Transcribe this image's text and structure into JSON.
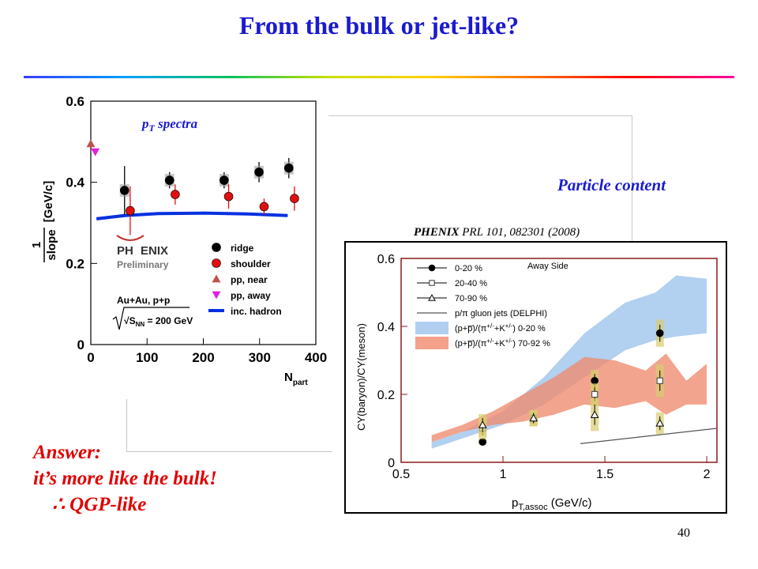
{
  "title": "From the bulk or jet-like?",
  "particle_content_label": "Particle content",
  "reference": {
    "experiment": "PHENIX",
    "citation": "PRL 101, 082301 (2008)"
  },
  "answer": {
    "line1": "Answer:",
    "line2": "it’s more like the bulk!",
    "line3": "∴ QGP-like"
  },
  "page_number": "40",
  "colors": {
    "title": "#1a1ad0",
    "answer": "#e00000",
    "band_central": "#9cc3ec",
    "band_peripheral": "#f08a6e",
    "right_axes": "#8b1a1a"
  },
  "chart_data": [
    {
      "type": "scatter",
      "title": "pT spectra",
      "title_main": "p",
      "title_sub": "T",
      "title_tail": " spectra",
      "xlabel_main": "N",
      "xlabel_sub": "part",
      "ylabel_numer": "1",
      "ylabel_denom": "slope",
      "ylabel_unit": "[GeV/c]",
      "xlim": [
        0,
        400
      ],
      "ylim": [
        0,
        0.6
      ],
      "xticks": [
        "0",
        "100",
        "200",
        "300",
        "400"
      ],
      "yticks": [
        "0",
        "0.2",
        "0.4",
        "0.6"
      ],
      "logo_lines": [
        "PH",
        "ENIX",
        "Preliminary"
      ],
      "system_lines": [
        "Au+Au, p+p",
        "√S",
        "NN",
        " = 200 GeV"
      ],
      "series": [
        {
          "name": "ridge",
          "marker": "circle",
          "color": "#000000",
          "x": [
            60,
            140,
            237,
            299,
            352
          ],
          "y": [
            0.38,
            0.405,
            0.405,
            0.425,
            0.435
          ],
          "err": [
            0.06,
            0.02,
            0.02,
            0.025,
            0.025
          ]
        },
        {
          "name": "shoulder",
          "marker": "circle",
          "color": "#e01010",
          "x": [
            70,
            150,
            245,
            308,
            362
          ],
          "y": [
            0.33,
            0.37,
            0.365,
            0.34,
            0.36
          ],
          "err": [
            0.06,
            0.025,
            0.03,
            0.02,
            0.03
          ]
        },
        {
          "name": "pp, near",
          "marker": "triangle-up",
          "color": "#c0504d",
          "x": [
            0
          ],
          "y": [
            0.495
          ],
          "err": [
            0
          ]
        },
        {
          "name": "pp, away",
          "marker": "triangle-down",
          "color": "#e020e0",
          "x": [
            8
          ],
          "y": [
            0.475
          ],
          "err": [
            0
          ]
        },
        {
          "name": "inc. hadron",
          "marker": "line",
          "color": "#0030e0",
          "x": [
            10,
            60,
            120,
            200,
            280,
            350
          ],
          "y": [
            0.31,
            0.318,
            0.323,
            0.324,
            0.322,
            0.318
          ]
        }
      ]
    },
    {
      "type": "scatter",
      "title": "",
      "xlabel_main": "p",
      "xlabel_sub": "T,assoc",
      "xlabel_unit": " (GeV/c)",
      "ylabel": "CY(baryon)/CY(meson)",
      "xlim": [
        0.5,
        2.05
      ],
      "ylim": [
        0,
        0.6
      ],
      "xticks": [
        "0.5",
        "1",
        "1.5",
        "2"
      ],
      "yticks": [
        "0",
        "0.2",
        "0.4",
        "0.6"
      ],
      "annotation": "Away Side",
      "series": [
        {
          "name": "0-20 %",
          "marker": "circle",
          "color": "#000000",
          "x": [
            0.9,
            1.15,
            1.45,
            1.77
          ],
          "y": [
            0.06,
            0.13,
            0.24,
            0.38
          ],
          "err": [
            0.004,
            0.01,
            0.02,
            0.025
          ]
        },
        {
          "name": "20-40 %",
          "marker": "square",
          "color": "#999999",
          "x": [
            0.9,
            1.15,
            1.45,
            1.77
          ],
          "y": [
            0.1,
            0.13,
            0.2,
            0.24
          ],
          "err": [
            0.02,
            0.015,
            0.02,
            0.03
          ]
        },
        {
          "name": "70-90 %",
          "marker": "triangle-up",
          "color": "#000000",
          "x": [
            0.9,
            1.15,
            1.45,
            1.77
          ],
          "y": [
            0.11,
            0.13,
            0.14,
            0.115
          ],
          "err": [
            0.02,
            0.015,
            0.03,
            0.02
          ]
        },
        {
          "name": "p/π gluon jets (DELPHI)",
          "marker": "line",
          "color": "#555555",
          "x": [
            1.38,
            2.05
          ],
          "y": [
            0.055,
            0.1
          ]
        },
        {
          "name_prefix": "(p+",
          "name_suffix": ")/(π",
          "name_sup1": "+/-",
          "name_mid": "+K",
          "name_sup2": "+/-",
          "name_tail": ") 0-20 %",
          "marker": "band",
          "color": "#9cc3ec",
          "x": [
            0.65,
            0.8,
            1.0,
            1.2,
            1.4,
            1.6,
            1.75,
            1.85,
            2.0
          ],
          "y_low": [
            0.04,
            0.07,
            0.11,
            0.17,
            0.25,
            0.33,
            0.36,
            0.37,
            0.38
          ],
          "y_high": [
            0.06,
            0.09,
            0.15,
            0.25,
            0.38,
            0.47,
            0.5,
            0.55,
            0.54
          ]
        },
        {
          "name_prefix": "(p+",
          "name_suffix": ")/(π",
          "name_sup1": "+/-",
          "name_mid": "+K",
          "name_sup2": "+/-",
          "name_tail": ") 70-92 %",
          "marker": "band",
          "color": "#f08a6e",
          "x": [
            0.65,
            0.8,
            0.95,
            1.1,
            1.25,
            1.4,
            1.55,
            1.7,
            1.8,
            1.9,
            2.0
          ],
          "y_low": [
            0.06,
            0.09,
            0.11,
            0.12,
            0.14,
            0.17,
            0.16,
            0.18,
            0.14,
            0.17,
            0.17
          ],
          "y_high": [
            0.08,
            0.11,
            0.15,
            0.2,
            0.25,
            0.31,
            0.3,
            0.27,
            0.32,
            0.24,
            0.29
          ]
        }
      ]
    }
  ]
}
